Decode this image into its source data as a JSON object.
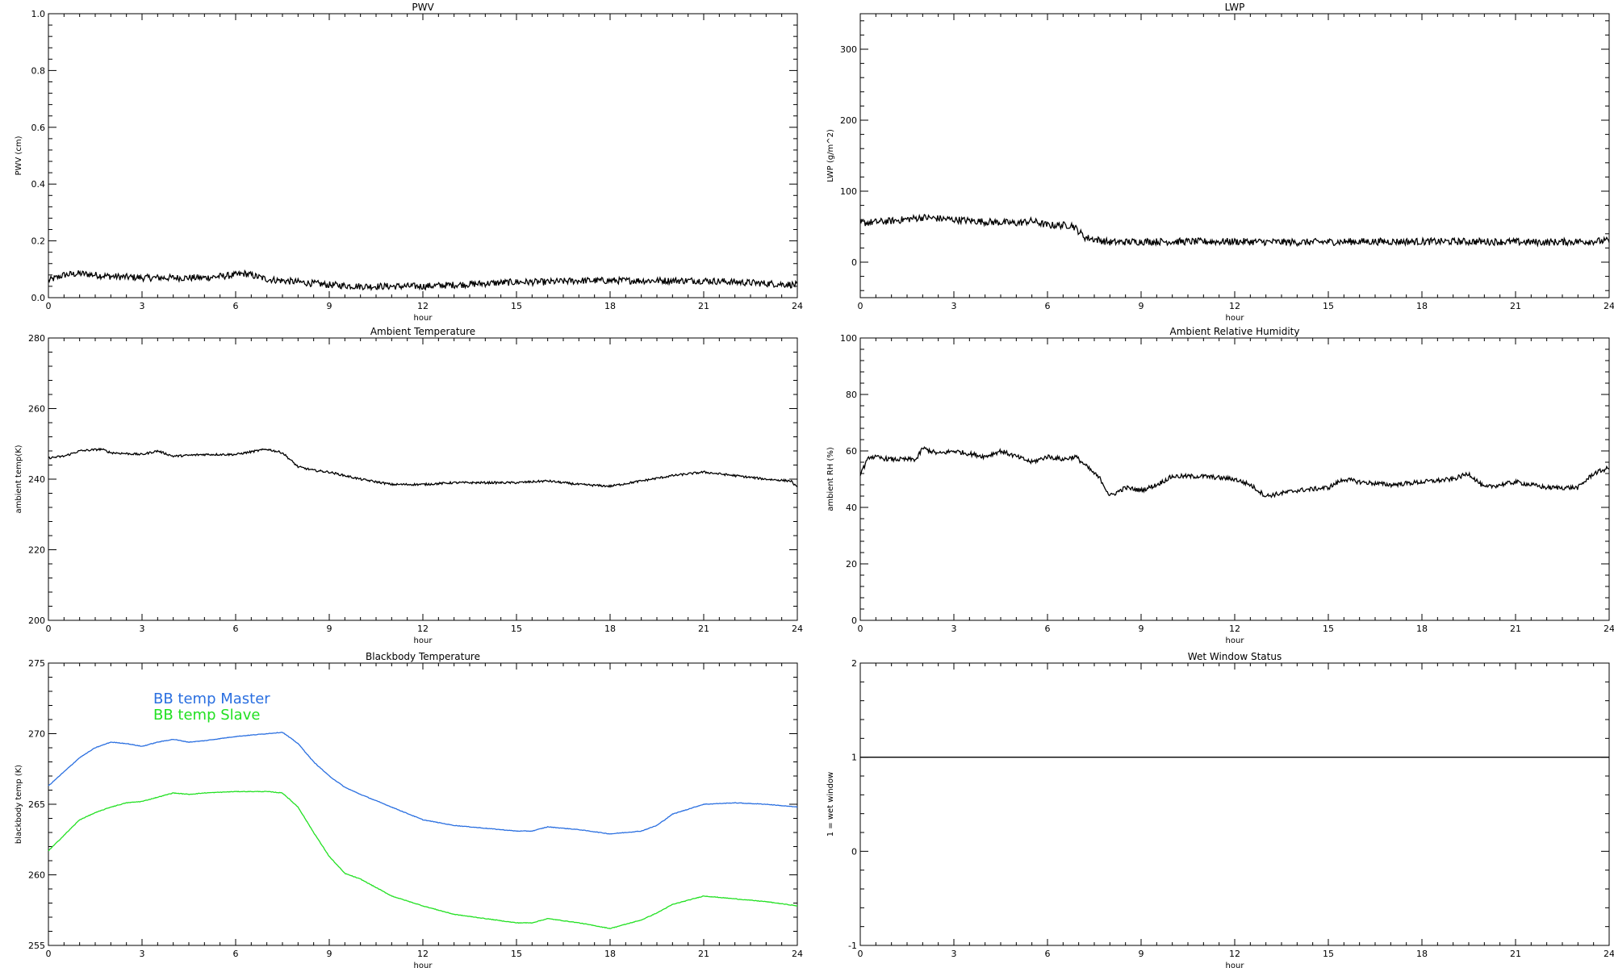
{
  "chart_data": [
    {
      "id": "pwv",
      "type": "line",
      "title": "PWV",
      "xlabel": "hour",
      "ylabel": "PWV (cm)",
      "xlim": [
        0,
        24
      ],
      "ylim": [
        0,
        1.0
      ],
      "xticks": [
        0,
        3,
        6,
        9,
        12,
        15,
        18,
        21,
        24
      ],
      "xtick_labels": [
        "0",
        "3",
        "6",
        "9",
        "12",
        "15",
        "18",
        "21",
        "24"
      ],
      "yticks": [
        0,
        0.2,
        0.4,
        0.6,
        0.8,
        1.0
      ],
      "ytick_labels": [
        "0.0",
        "0.2",
        "0.4",
        "0.6",
        "0.8",
        "1.0"
      ],
      "noise": 0.012,
      "series": [
        {
          "color": "#000000",
          "x": [
            0,
            0.5,
            1,
            2,
            3,
            4,
            5,
            6,
            6.3,
            7,
            8,
            9,
            10,
            11,
            12,
            13,
            14,
            15,
            16,
            17,
            18,
            19,
            20,
            21,
            22,
            23,
            24
          ],
          "y": [
            0.06,
            0.08,
            0.085,
            0.075,
            0.07,
            0.07,
            0.07,
            0.08,
            0.085,
            0.065,
            0.055,
            0.045,
            0.04,
            0.04,
            0.04,
            0.045,
            0.05,
            0.055,
            0.055,
            0.06,
            0.06,
            0.06,
            0.06,
            0.06,
            0.055,
            0.05,
            0.045
          ]
        }
      ],
      "legend": []
    },
    {
      "id": "lwp",
      "type": "line",
      "title": "LWP",
      "xlabel": "hour",
      "ylabel": "LWP (g/m^2)",
      "xlim": [
        0,
        24
      ],
      "ylim": [
        -50,
        350
      ],
      "xticks": [
        0,
        3,
        6,
        9,
        12,
        15,
        18,
        21,
        24
      ],
      "xtick_labels": [
        "0",
        "3",
        "6",
        "9",
        "12",
        "15",
        "18",
        "21",
        "24"
      ],
      "yticks": [
        0,
        100,
        200,
        300
      ],
      "ytick_labels": [
        "0",
        "100",
        "200",
        "300"
      ],
      "noise": 5,
      "series": [
        {
          "color": "#000000",
          "x": [
            0,
            1,
            2,
            3,
            4,
            5,
            5.5,
            6,
            6.8,
            7.2,
            8,
            9,
            10,
            12,
            14,
            16,
            18,
            20,
            22,
            24
          ],
          "y": [
            55,
            58,
            63,
            60,
            57,
            55,
            58,
            52,
            52,
            35,
            28,
            29,
            29,
            29,
            28,
            29,
            29,
            29,
            28,
            30
          ]
        }
      ],
      "legend": []
    },
    {
      "id": "ambient-temp",
      "type": "line",
      "title": "Ambient Temperature",
      "xlabel": "hour",
      "ylabel": "ambient temp(K)",
      "xlim": [
        0,
        24
      ],
      "ylim": [
        200,
        280
      ],
      "xticks": [
        0,
        3,
        6,
        9,
        12,
        15,
        18,
        21,
        24
      ],
      "xtick_labels": [
        "0",
        "3",
        "6",
        "9",
        "12",
        "15",
        "18",
        "21",
        "24"
      ],
      "yticks": [
        200,
        220,
        240,
        260,
        280
      ],
      "ytick_labels": [
        "200",
        "220",
        "240",
        "260",
        "280"
      ],
      "noise": 0.3,
      "series": [
        {
          "color": "#000000",
          "x": [
            0,
            0.5,
            1,
            1.7,
            2,
            3,
            3.5,
            4,
            5,
            6,
            7,
            7.5,
            8,
            8.5,
            9,
            10,
            11,
            12,
            13,
            14,
            15,
            16,
            17,
            18,
            19,
            20,
            21,
            22,
            23,
            23.8,
            24
          ],
          "y": [
            246,
            246.5,
            248,
            248.5,
            247.5,
            247,
            248,
            246.5,
            247,
            247,
            248.5,
            247.5,
            243.5,
            242.5,
            242,
            240,
            238.5,
            238.5,
            239,
            239,
            239,
            239.5,
            238.5,
            238,
            239.5,
            241,
            242,
            241,
            240,
            239.5,
            237.5
          ]
        }
      ],
      "legend": []
    },
    {
      "id": "ambient-rh",
      "type": "line",
      "title": "Ambient Relative Humidity",
      "xlabel": "hour",
      "ylabel": "ambient RH (%)",
      "xlim": [
        0,
        24
      ],
      "ylim": [
        0,
        100
      ],
      "xticks": [
        0,
        3,
        6,
        9,
        12,
        15,
        18,
        21,
        24
      ],
      "xtick_labels": [
        "0",
        "3",
        "6",
        "9",
        "12",
        "15",
        "18",
        "21",
        "24"
      ],
      "yticks": [
        0,
        20,
        40,
        60,
        80,
        100
      ],
      "ytick_labels": [
        "0",
        "20",
        "40",
        "60",
        "80",
        "100"
      ],
      "noise": 0.8,
      "series": [
        {
          "color": "#000000",
          "x": [
            0,
            0.3,
            1,
            1.8,
            2,
            2.5,
            3,
            3.5,
            4,
            4.5,
            5,
            5.5,
            6,
            6.5,
            6.9,
            7.3,
            7.7,
            8,
            8.5,
            9,
            9.5,
            10,
            11,
            12,
            12.5,
            13,
            13.5,
            14,
            15,
            15.5,
            16,
            17,
            18,
            19,
            19.5,
            20,
            20.5,
            21,
            22,
            23,
            23.5,
            24
          ],
          "y": [
            52,
            58,
            57,
            57,
            61,
            59,
            60,
            59,
            58,
            60,
            58,
            56,
            58,
            57,
            58,
            54,
            50,
            44,
            47,
            46,
            48,
            51,
            51,
            50,
            48,
            44,
            45,
            46,
            47,
            50,
            49,
            48,
            49,
            50,
            52,
            47,
            48,
            49,
            47,
            47,
            52,
            54
          ]
        }
      ],
      "legend": []
    },
    {
      "id": "blackbody-temp",
      "type": "line",
      "title": "Blackbody Temperature",
      "xlabel": "hour",
      "ylabel": "blackbody temp (K)",
      "xlim": [
        0,
        24
      ],
      "ylim": [
        255,
        275
      ],
      "xticks": [
        0,
        3,
        6,
        9,
        12,
        15,
        18,
        21,
        24
      ],
      "xtick_labels": [
        "0",
        "3",
        "6",
        "9",
        "12",
        "15",
        "18",
        "21",
        "24"
      ],
      "yticks": [
        255,
        260,
        265,
        270,
        275
      ],
      "ytick_labels": [
        "255",
        "260",
        "265",
        "270",
        "275"
      ],
      "noise": 0.02,
      "series": [
        {
          "name": "BB temp Master",
          "color": "#2a6fe0",
          "x": [
            0,
            0.5,
            1,
            1.5,
            2,
            2.5,
            3,
            3.5,
            4,
            4.5,
            5,
            6,
            7,
            7.5,
            8,
            8.5,
            9,
            9.5,
            10,
            11,
            12,
            13,
            14,
            15,
            15.5,
            16,
            17,
            18,
            19,
            19.5,
            20,
            21,
            22,
            23,
            24
          ],
          "y": [
            266.3,
            267.3,
            268.3,
            269,
            269.4,
            269.3,
            269.1,
            269.4,
            269.6,
            269.4,
            269.5,
            269.8,
            270,
            270.1,
            269.3,
            268,
            267,
            266.2,
            265.7,
            264.8,
            263.9,
            263.5,
            263.3,
            263.1,
            263.1,
            263.4,
            263.2,
            262.9,
            263.1,
            263.5,
            264.3,
            265,
            265.1,
            265,
            264.8
          ]
        },
        {
          "name": "BB temp Slave",
          "color": "#22e022",
          "x": [
            0,
            0.5,
            1,
            1.5,
            2,
            2.5,
            3,
            3.5,
            4,
            4.5,
            5,
            6,
            7,
            7.5,
            8,
            8.5,
            9,
            9.5,
            10,
            11,
            12,
            13,
            14,
            15,
            15.5,
            16,
            17,
            18,
            19,
            19.5,
            20,
            21,
            22,
            23,
            24
          ],
          "y": [
            261.7,
            262.8,
            263.9,
            264.4,
            264.8,
            265.1,
            265.2,
            265.5,
            265.8,
            265.7,
            265.8,
            265.9,
            265.9,
            265.8,
            264.8,
            263,
            261.3,
            260.1,
            259.7,
            258.5,
            257.8,
            257.2,
            256.9,
            256.6,
            256.6,
            256.9,
            256.6,
            256.2,
            256.8,
            257.3,
            257.9,
            258.5,
            258.3,
            258.1,
            257.8
          ]
        }
      ],
      "legend": [
        "BB temp Master",
        "BB temp Slave"
      ],
      "legend_position": "top-left"
    },
    {
      "id": "wet-window",
      "type": "line",
      "title": "Wet Window Status",
      "xlabel": "hour",
      "ylabel": "1 = wet window",
      "xlim": [
        0,
        24
      ],
      "ylim": [
        -1,
        2
      ],
      "xticks": [
        0,
        3,
        6,
        9,
        12,
        15,
        18,
        21,
        24
      ],
      "xtick_labels": [
        "0",
        "3",
        "6",
        "9",
        "12",
        "15",
        "18",
        "21",
        "24"
      ],
      "yticks": [
        -1,
        0,
        1,
        2
      ],
      "ytick_labels": [
        "-1",
        "0",
        "1",
        "2"
      ],
      "noise": 0,
      "series": [
        {
          "color": "#000000",
          "x": [
            0,
            24
          ],
          "y": [
            1,
            1
          ]
        }
      ],
      "legend": []
    }
  ]
}
